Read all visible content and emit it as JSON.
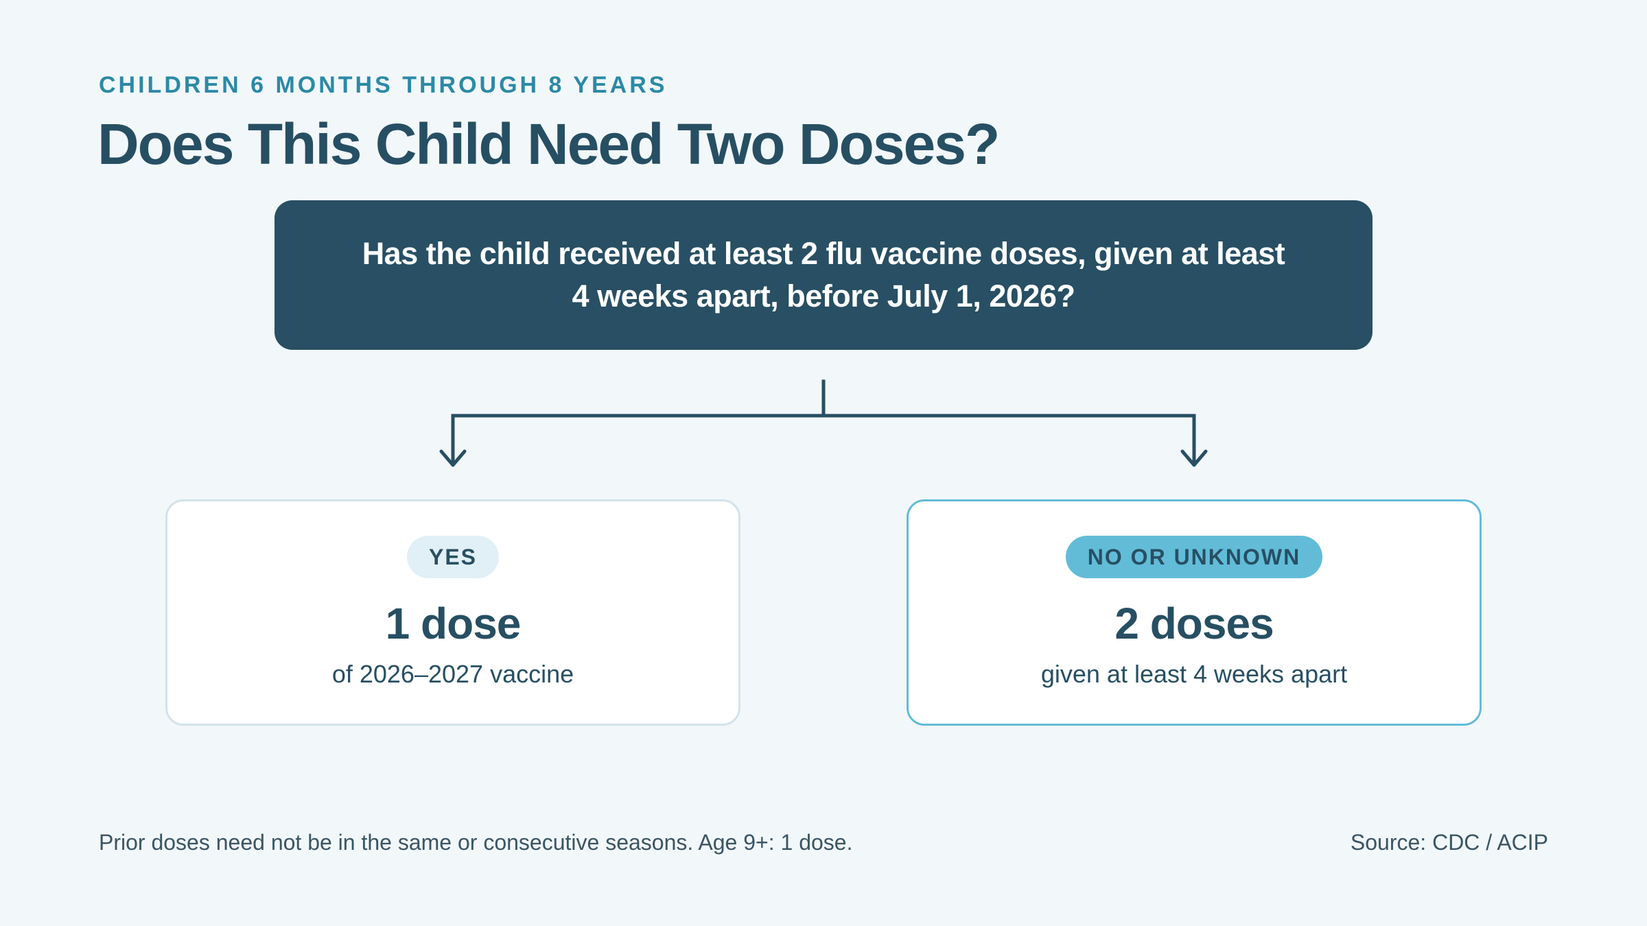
{
  "header": {
    "eyebrow": "CHILDREN 6 MONTHS THROUGH 8 YEARS",
    "title": "Does This Child Need Two Doses?"
  },
  "question": {
    "text": "Has the child received at least 2 flu vaccine doses, given at least 4 weeks apart, before July 1, 2026?"
  },
  "outcomes": {
    "yes": {
      "badge": "YES",
      "dose": "1 dose",
      "detail": "of 2026–2027 vaccine"
    },
    "no": {
      "badge": "NO OR UNKNOWN",
      "dose": "2 doses",
      "detail": "given at least 4 weeks apart"
    }
  },
  "footer": {
    "note": "Prior doses need not be in the same or consecutive seasons. Age 9+: 1 dose.",
    "source": "Source: CDC / ACIP"
  },
  "colors": {
    "primary_dark": "#284f63",
    "accent_teal": "#2b8aa6",
    "accent_light_blue": "#62bcd8",
    "yes_badge_bg": "#e1f0f6",
    "background": "#f2f7fa"
  }
}
